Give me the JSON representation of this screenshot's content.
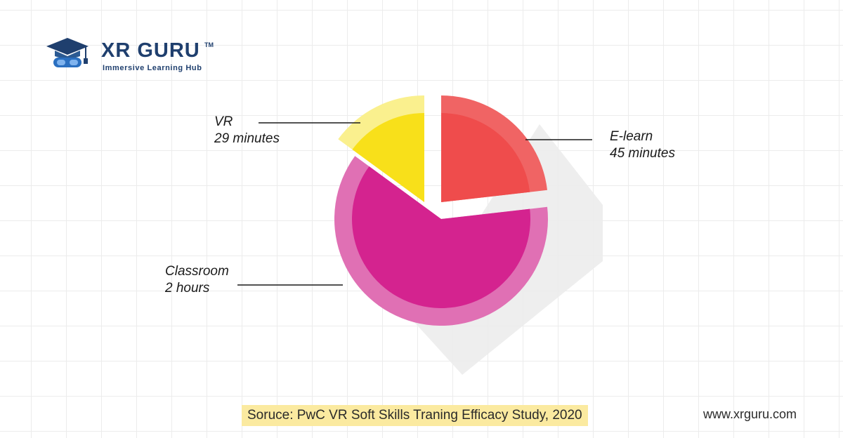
{
  "brand": {
    "name": "XR GURU",
    "trademark": "TM",
    "tagline": "Immersive Learning Hub"
  },
  "chart_data": {
    "type": "pie",
    "title": "",
    "unit": "minutes",
    "categories": [
      "E-learn",
      "Classroom",
      "VR"
    ],
    "values": [
      45,
      120,
      29
    ],
    "value_labels": [
      "45 minutes",
      "2 hours",
      "29 minutes"
    ],
    "colors": {
      "E-learn": "#ef4c4c",
      "Classroom": "#d4238f",
      "VR": "#f8e01a"
    },
    "ring_colors": {
      "E-learn": "#f06464",
      "Classroom": "#e070b4",
      "VR": "#faf08e"
    },
    "shadow_color": "#ececec"
  },
  "footer": {
    "source": "Soruce: PwC VR Soft Skills Traning Efficacy Study, 2020",
    "website": "www.xrguru.com"
  }
}
